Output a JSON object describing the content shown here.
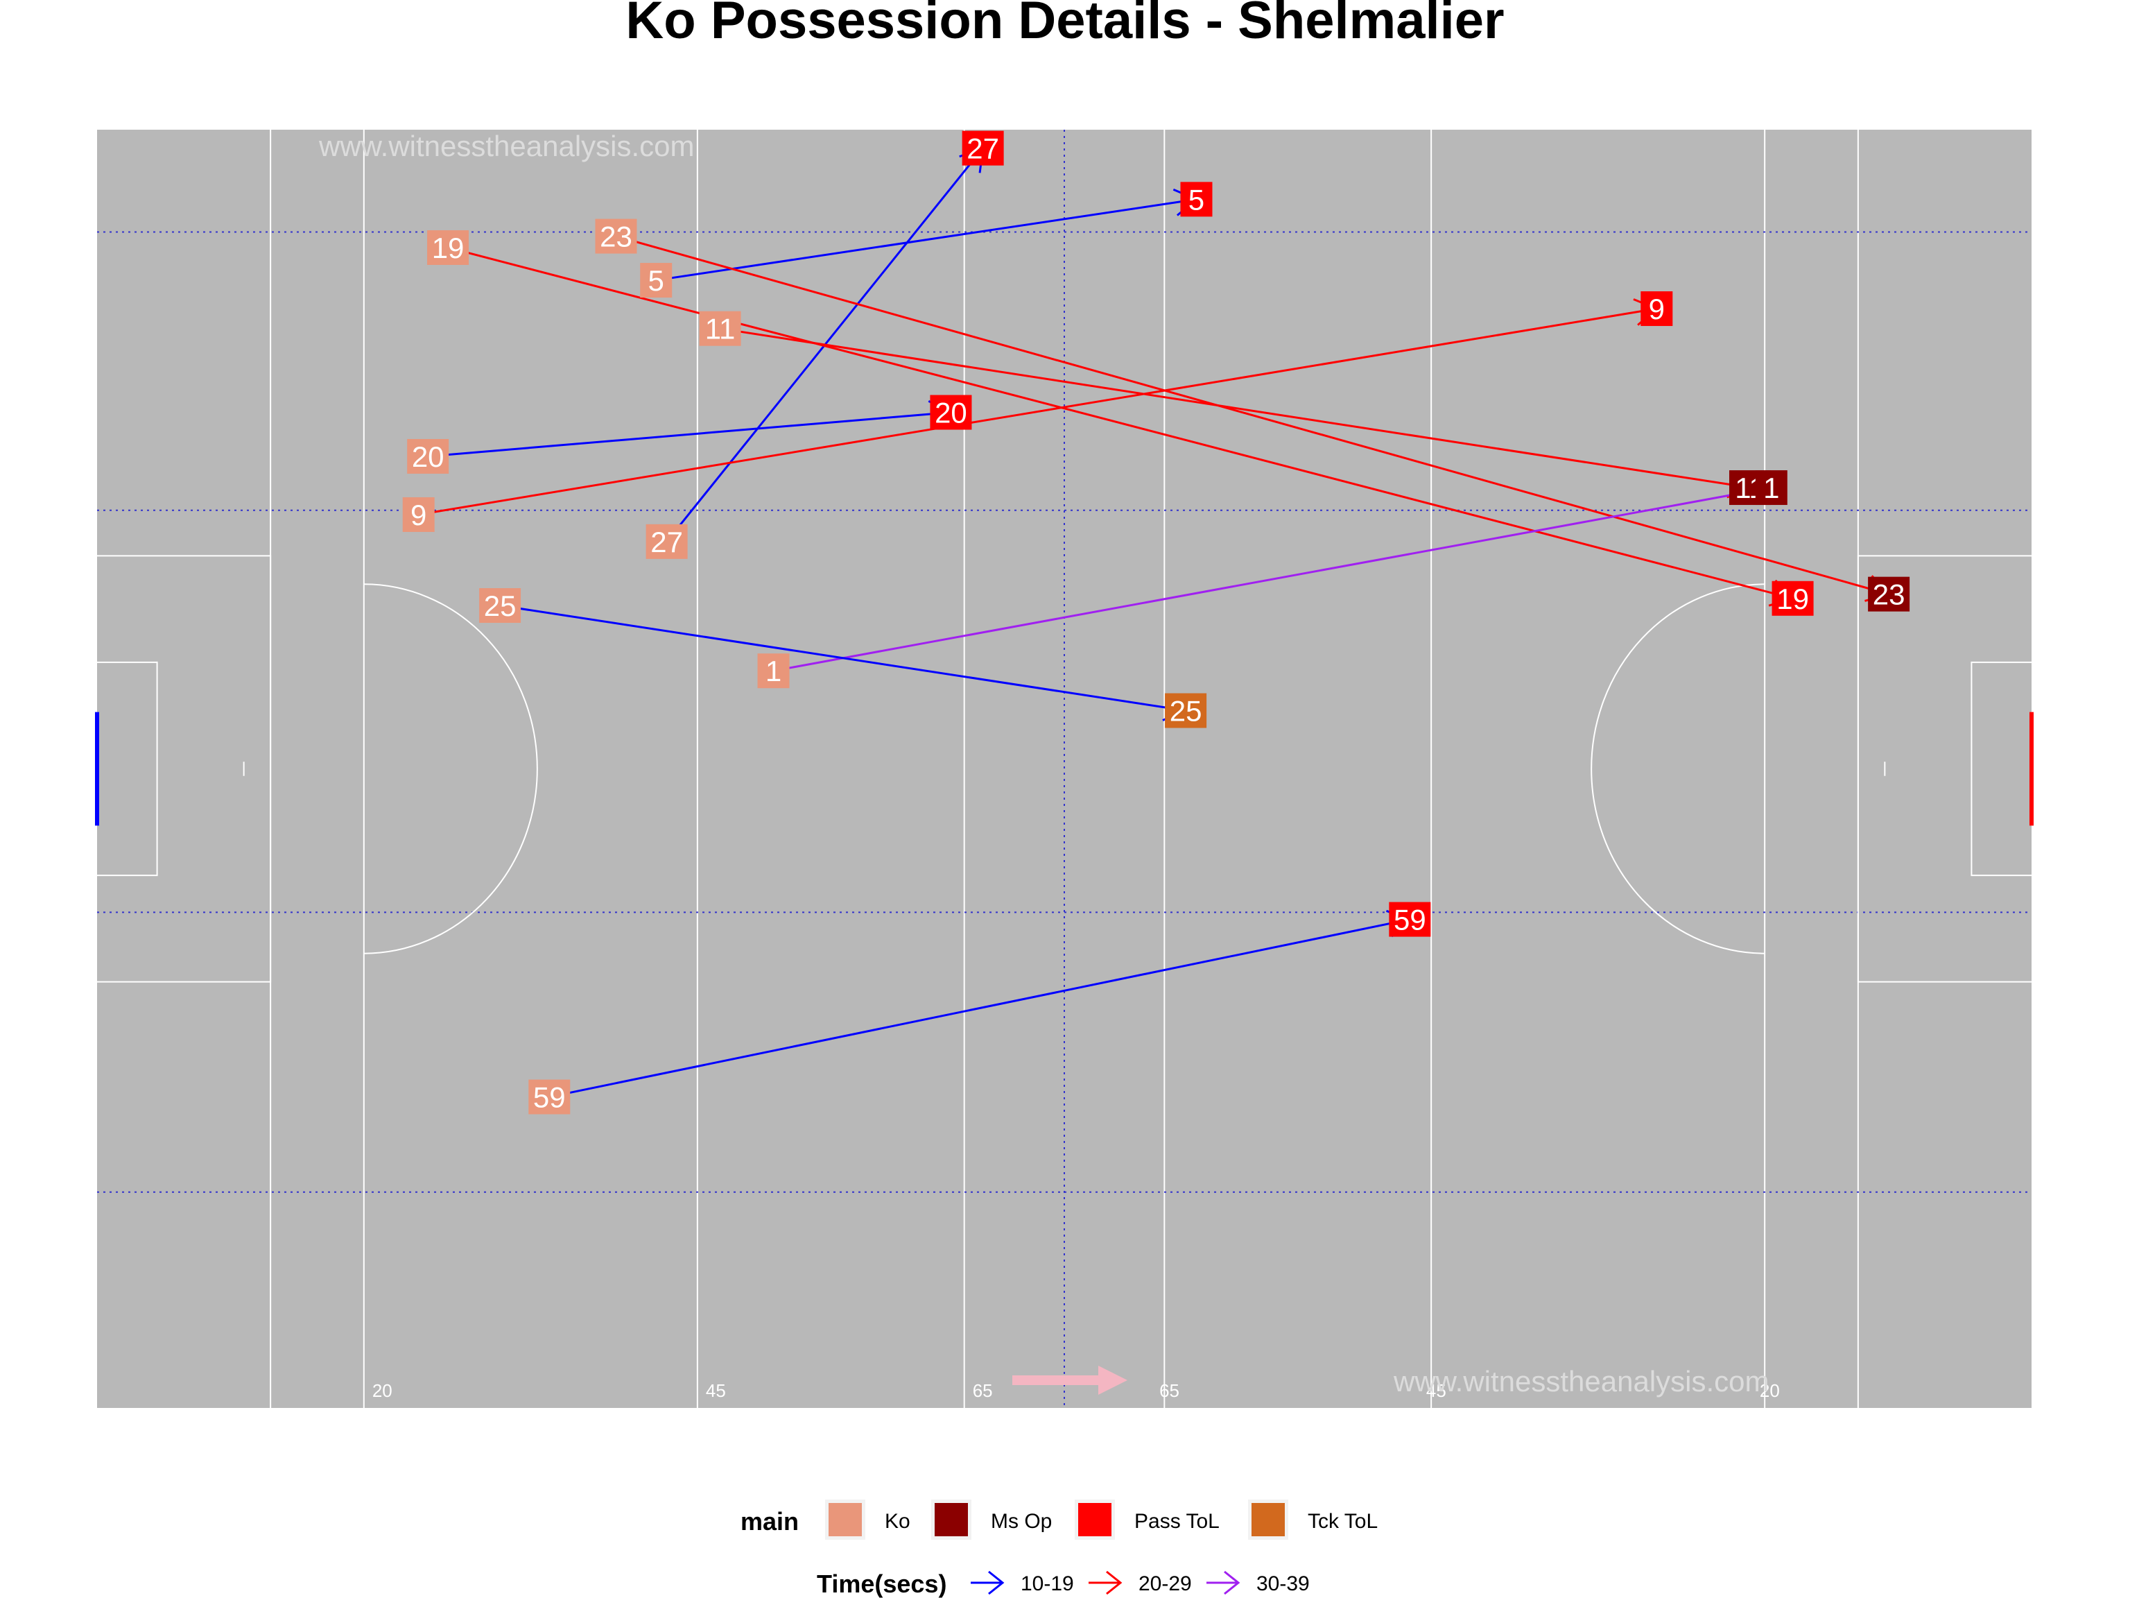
{
  "title": "Ko Possession Details - Shelmalier",
  "watermark": "www.witnesstheanalysis.com",
  "pitch": {
    "length_m": 145,
    "width_m": 90,
    "line_numbers": [
      "20",
      "45",
      "65",
      "65",
      "45",
      "20"
    ]
  },
  "legends": {
    "main": {
      "title": "main",
      "items": [
        {
          "label": "Ko",
          "color": "#E9967A"
        },
        {
          "label": "Ms Op",
          "color": "#8B0000"
        },
        {
          "label": "Pass ToL",
          "color": "#FF0000"
        },
        {
          "label": "Tck ToL",
          "color": "#D2691E"
        }
      ]
    },
    "time": {
      "title": "Time(secs)",
      "items": [
        {
          "label": "10-19",
          "color": "#0000FF"
        },
        {
          "label": "20-29",
          "color": "#FF0000"
        },
        {
          "label": "30-39",
          "color": "#A020F0"
        }
      ]
    }
  },
  "chart_data": {
    "type": "scatter",
    "title": "Ko Possession Details - Shelmalier",
    "xlim": [
      0,
      145
    ],
    "ylim": [
      0,
      90
    ],
    "direction_of_play": "left-to-right",
    "possessions": [
      {
        "id": "27",
        "time_bin": "10-19",
        "start": {
          "x": 42.7,
          "y": 61.0,
          "type": "Ko"
        },
        "end": {
          "x": 66.4,
          "y": 88.7,
          "type": "Pass ToL"
        }
      },
      {
        "id": "5",
        "time_bin": "10-19",
        "start": {
          "x": 41.9,
          "y": 79.4,
          "type": "Ko"
        },
        "end": {
          "x": 82.4,
          "y": 85.1,
          "type": "Pass ToL"
        }
      },
      {
        "id": "19",
        "time_bin": "20-29",
        "start": {
          "x": 26.3,
          "y": 81.7,
          "type": "Ko"
        },
        "end": {
          "x": 127.1,
          "y": 57.0,
          "type": "Pass ToL"
        }
      },
      {
        "id": "23",
        "time_bin": "20-29",
        "start": {
          "x": 38.9,
          "y": 82.5,
          "type": "Ko"
        },
        "end": {
          "x": 134.3,
          "y": 57.3,
          "type": "Ms Op"
        }
      },
      {
        "id": "11",
        "time_bin": "20-29",
        "start": {
          "x": 46.7,
          "y": 76.0,
          "type": "Ko"
        },
        "end": {
          "x": 123.9,
          "y": 64.8,
          "type": "Ms Op"
        }
      },
      {
        "id": "9",
        "time_bin": "20-29",
        "start": {
          "x": 24.1,
          "y": 62.9,
          "type": "Ko"
        },
        "end": {
          "x": 116.9,
          "y": 77.4,
          "type": "Pass ToL"
        }
      },
      {
        "id": "20",
        "time_bin": "10-19",
        "start": {
          "x": 24.8,
          "y": 67.0,
          "type": "Ko"
        },
        "end": {
          "x": 64.0,
          "y": 70.1,
          "type": "Pass ToL"
        }
      },
      {
        "id": "1",
        "time_bin": "30-39",
        "start": {
          "x": 50.7,
          "y": 51.9,
          "type": "Ko"
        },
        "end": {
          "x": 125.5,
          "y": 64.8,
          "type": "Ms Op"
        }
      },
      {
        "id": "25",
        "time_bin": "10-19",
        "start": {
          "x": 30.2,
          "y": 56.5,
          "type": "Ko"
        },
        "end": {
          "x": 81.6,
          "y": 49.1,
          "type": "Tck ToL"
        }
      },
      {
        "id": "59",
        "time_bin": "10-19",
        "start": {
          "x": 33.9,
          "y": 21.9,
          "type": "Ko"
        },
        "end": {
          "x": 98.4,
          "y": 34.4,
          "type": "Pass ToL"
        }
      }
    ]
  }
}
